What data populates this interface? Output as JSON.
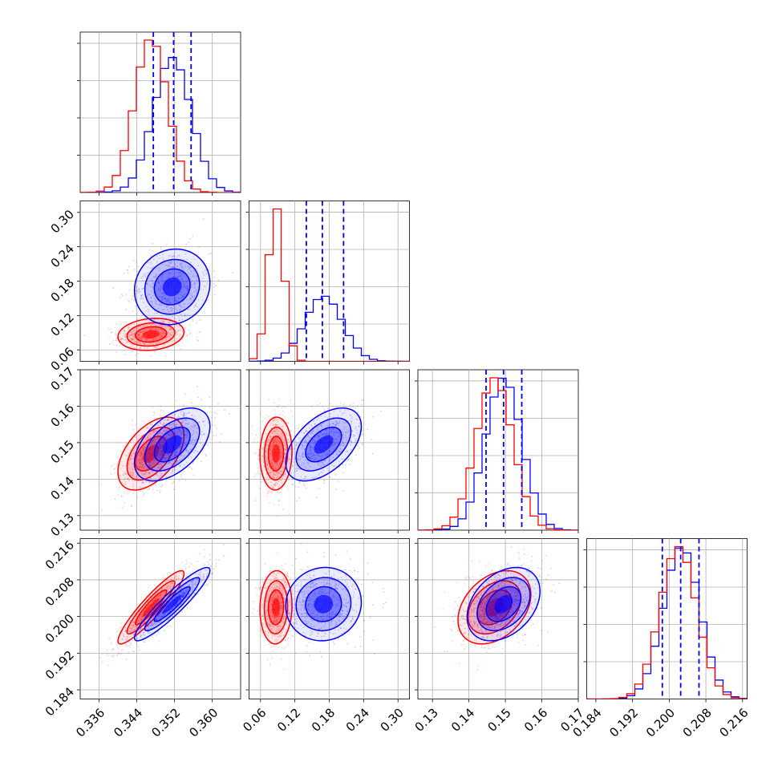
{
  "chart_data": {
    "type": "corner",
    "title": "",
    "series": [
      {
        "name": "",
        "color": "#0000ff"
      },
      {
        "name": "",
        "color": "#ff0000"
      }
    ],
    "quantile_line_color": "#0000ff",
    "grid": true,
    "params": [
      {
        "range": [
          0.332,
          0.366
        ],
        "ticks": [
          "0.336",
          "0.344",
          "0.352",
          "0.360"
        ],
        "tick_values": [
          0.336,
          0.344,
          0.352,
          0.36
        ],
        "quantiles": [
          0.3475,
          0.3518,
          0.3555
        ],
        "blue": {
          "mean": 0.3515,
          "sd": 0.004
        },
        "red": {
          "mean": 0.347,
          "sd": 0.0035
        }
      },
      {
        "range": [
          0.04,
          0.32
        ],
        "ticks": [
          "0.06",
          "0.12",
          "0.18",
          "0.24",
          "0.30"
        ],
        "tick_values": [
          0.06,
          0.12,
          0.18,
          0.24,
          0.3
        ],
        "quantiles": [
          0.14,
          0.168,
          0.205
        ],
        "blue": {
          "mean": 0.17,
          "sd": 0.033
        },
        "red": {
          "mean": 0.087,
          "sd": 0.014
        }
      },
      {
        "range": [
          0.126,
          0.17
        ],
        "ticks": [
          "0.13",
          "0.14",
          "0.15",
          "0.16",
          "0.17"
        ],
        "tick_values": [
          0.13,
          0.14,
          0.15,
          0.16,
          0.17
        ],
        "quantiles": [
          0.1447,
          0.1495,
          0.1545
        ],
        "blue": {
          "mean": 0.1495,
          "sd": 0.005
        },
        "red": {
          "mean": 0.147,
          "sd": 0.005
        }
      },
      {
        "range": [
          0.182,
          0.217
        ],
        "ticks": [
          "0.184",
          "0.192",
          "0.200",
          "0.208",
          "0.216"
        ],
        "tick_values": [
          0.184,
          0.192,
          0.2,
          0.208,
          0.216
        ],
        "quantiles": [
          0.1985,
          0.2025,
          0.2065
        ],
        "blue": {
          "mean": 0.2027,
          "sd": 0.004
        },
        "red": {
          "mean": 0.202,
          "sd": 0.004
        }
      }
    ],
    "correlations": {
      "blue": [
        [
          1,
          0.1,
          0.5,
          0.92
        ],
        [
          0.1,
          1,
          0.5,
          0.05
        ],
        [
          0.5,
          0.5,
          1,
          0.35
        ],
        [
          0.92,
          0.05,
          0.35,
          1
        ]
      ],
      "red": [
        [
          1,
          0.15,
          0.5,
          0.92
        ],
        [
          0.15,
          1,
          0.05,
          0.05
        ],
        [
          0.5,
          0.05,
          1,
          0.35
        ],
        [
          0.92,
          0.05,
          0.35,
          1
        ]
      ]
    }
  }
}
